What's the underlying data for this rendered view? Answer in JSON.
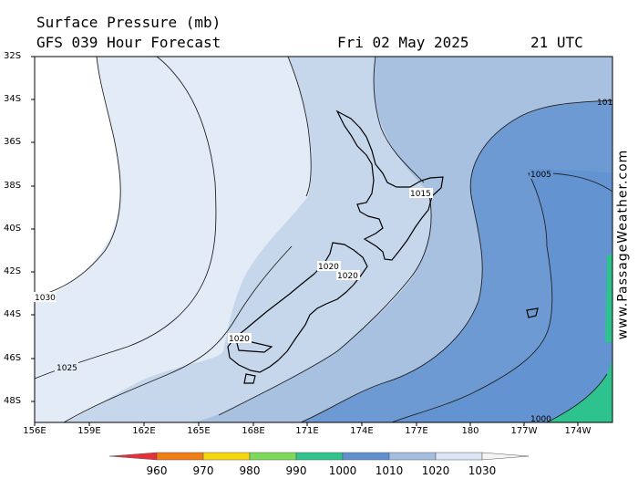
{
  "header": {
    "title": "Surface Pressure (mb)",
    "subtitle": "GFS 039 Hour Forecast",
    "date": "Fri 02 May 2025",
    "time": "21 UTC"
  },
  "watermark": "www.PassageWeather.com",
  "map": {
    "lat_labels": [
      "32S",
      "34S",
      "36S",
      "38S",
      "40S",
      "42S",
      "44S",
      "46S",
      "48S"
    ],
    "lon_labels": [
      "156E",
      "159E",
      "162E",
      "165E",
      "168E",
      "171E",
      "174E",
      "177E",
      "180",
      "177W",
      "174W"
    ],
    "isobar_labels": [
      {
        "id": "c1030",
        "text": "1030"
      },
      {
        "id": "c1025",
        "text": "1025"
      },
      {
        "id": "c1020a",
        "text": "1020"
      },
      {
        "id": "c1020b",
        "text": "1020"
      },
      {
        "id": "c1020c",
        "text": "1020"
      },
      {
        "id": "c1015",
        "text": "1015"
      },
      {
        "id": "c1005",
        "text": "1005"
      },
      {
        "id": "c101",
        "text": "101"
      },
      {
        "id": "c1000",
        "text": "1000"
      }
    ]
  },
  "legend": {
    "labels": [
      "960",
      "970",
      "980",
      "990",
      "1000",
      "1010",
      "1020",
      "1030"
    ],
    "colors": [
      "#e8303a",
      "#f07d16",
      "#f6d60e",
      "#7cdc5a",
      "#2fc48c",
      "#6090d0",
      "#a3bede",
      "#dbe5f3"
    ]
  },
  "colors": {
    "band_1030": "#ffffff",
    "band_1025": "#e3ebf6",
    "band_1020": "#c6d6eb",
    "band_1015": "#a8c1e0",
    "band_1010": "#6e9ad3",
    "band_1005": "#6493d2",
    "band_1000": "#2ec28e"
  }
}
